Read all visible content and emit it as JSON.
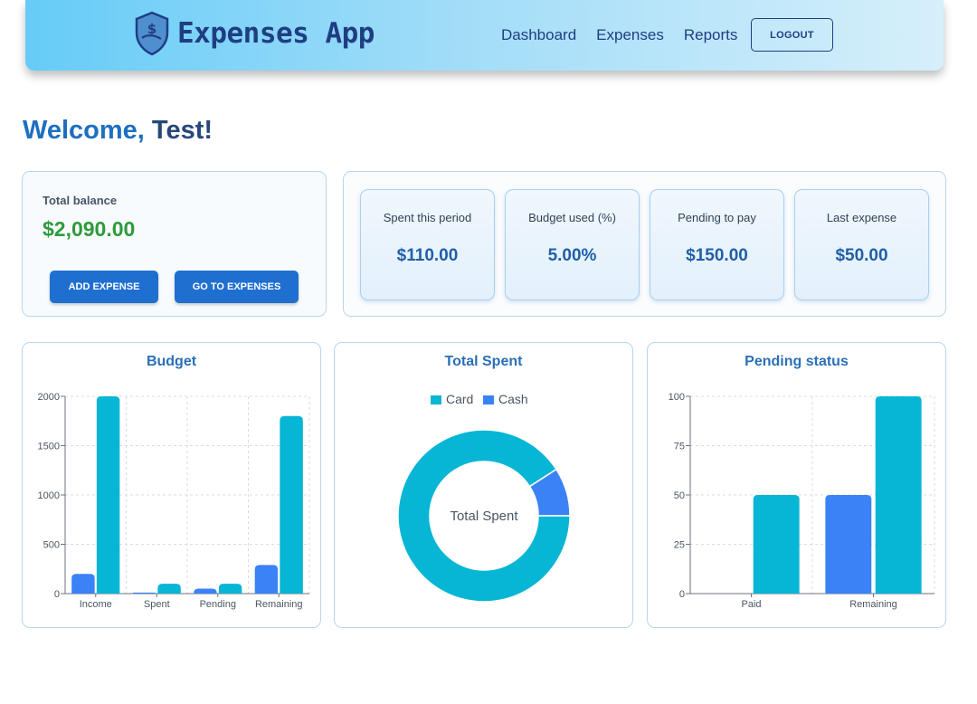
{
  "header": {
    "brand": "Expenses App",
    "nav": [
      "Dashboard",
      "Expenses",
      "Reports"
    ],
    "logout_label": "LOGOUT"
  },
  "welcome": {
    "prefix": "Welcome, ",
    "name": "Test!"
  },
  "balance": {
    "label": "Total balance",
    "value": "$2,090.00",
    "add_label": "ADD EXPENSE",
    "go_label": "GO TO EXPENSES"
  },
  "stats": [
    {
      "label": "Spent this period",
      "value": "$110.00"
    },
    {
      "label": "Budget used (%)",
      "value": "5.00%"
    },
    {
      "label": "Pending to pay",
      "value": "$150.00"
    },
    {
      "label": "Last expense",
      "value": "$50.00"
    }
  ],
  "colors": {
    "cash": "#3b82f6",
    "card": "#06b6d4"
  },
  "chart_data": [
    {
      "type": "bar",
      "title": "Budget",
      "categories": [
        "Income",
        "Spent",
        "Pending",
        "Remaining"
      ],
      "ylim": [
        0,
        2000
      ],
      "yticks": [
        0,
        500,
        1000,
        1500,
        2000
      ],
      "grid": true,
      "series": [
        {
          "values": [
            200,
            10,
            50,
            290
          ]
        },
        {
          "values": [
            2000,
            100,
            100,
            1800
          ]
        }
      ]
    },
    {
      "type": "pie",
      "title": "Total Spent",
      "center_label": "Total Spent",
      "legend": [
        "Card",
        "Cash"
      ],
      "legend_position": "top",
      "values": [
        100,
        10
      ]
    },
    {
      "type": "bar",
      "title": "Pending status",
      "categories": [
        "Paid",
        "Remaining"
      ],
      "ylim": [
        0,
        100
      ],
      "yticks": [
        0,
        25,
        50,
        75,
        100
      ],
      "grid": true,
      "series": [
        {
          "values": [
            0,
            50
          ]
        },
        {
          "values": [
            50,
            100
          ]
        }
      ]
    }
  ]
}
